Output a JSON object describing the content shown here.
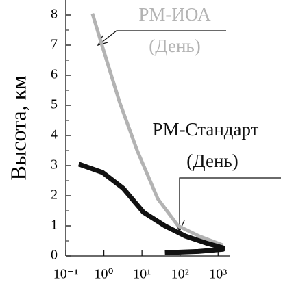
{
  "chart_data": {
    "type": "line",
    "y_label": "Высота, км",
    "xscale": "log",
    "xlim": [
      0.1,
      2000
    ],
    "xticks": [
      {
        "value": 0.1,
        "label": "10⁻¹"
      },
      {
        "value": 1,
        "label": "10⁰"
      },
      {
        "value": 10,
        "label": "10¹"
      },
      {
        "value": 100,
        "label": "10²"
      },
      {
        "value": 1000,
        "label": "10³"
      }
    ],
    "ylim": [
      0,
      8.5
    ],
    "yticks": [
      0,
      1,
      2,
      3,
      4,
      5,
      6,
      7,
      8
    ],
    "series": [
      {
        "name": "РМ-ИОА",
        "sub": "(День)",
        "color": "#b3b3b3",
        "width": 5,
        "x": [
          0.5,
          0.94,
          2.6,
          7.5,
          26,
          89,
          316,
          1350
        ],
        "values": [
          8.05,
          6.9,
          5.1,
          3.5,
          1.9,
          1.0,
          0.66,
          0.36
        ]
      },
      {
        "name": "РМ-Стандарт",
        "sub": "(День)",
        "color": "#111111",
        "width": 7,
        "x": [
          0.22,
          0.93,
          3.2,
          11,
          40,
          138,
          480,
          1350,
          1350,
          300,
          40
        ],
        "values": [
          3.05,
          2.77,
          2.25,
          1.45,
          1.0,
          0.66,
          0.43,
          0.27,
          0.22,
          0.15,
          0.11
        ]
      }
    ]
  }
}
